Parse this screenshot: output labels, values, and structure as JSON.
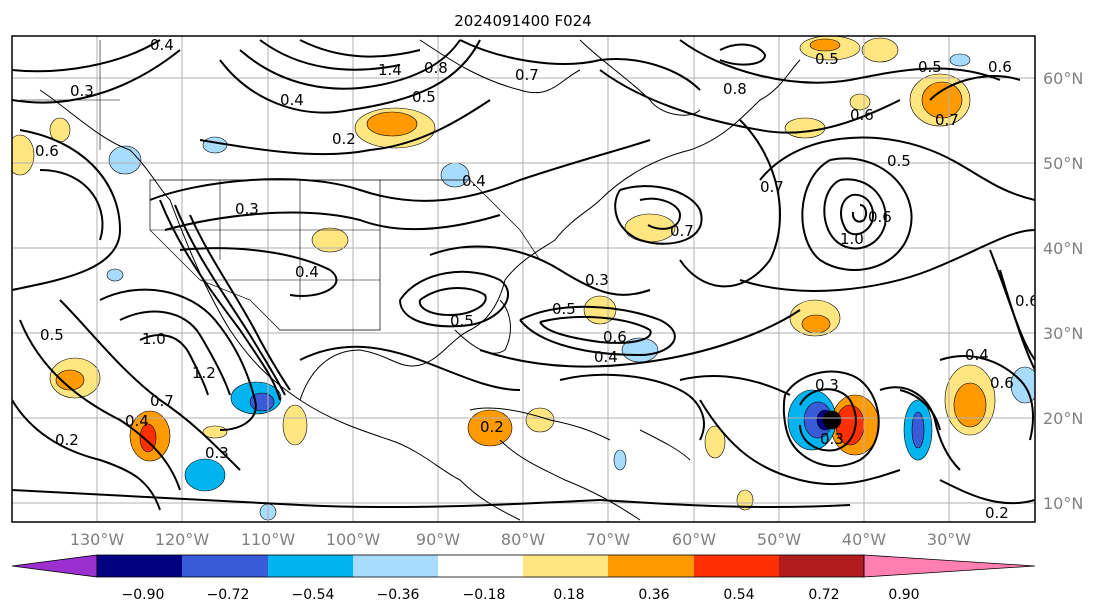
{
  "title": "2024091400 F024",
  "lon_ticks": [
    "130°W",
    "120°W",
    "110°W",
    "100°W",
    "90°W",
    "80°W",
    "70°W",
    "60°W",
    "50°W",
    "40°W",
    "30°W"
  ],
  "lat_ticks": [
    "60°N",
    "50°N",
    "40°N",
    "30°N",
    "20°N",
    "10°N"
  ],
  "colorbar": {
    "ticks": [
      "−0.90",
      "−0.72",
      "−0.54",
      "−0.36",
      "−0.18",
      "0.18",
      "0.36",
      "0.54",
      "0.72",
      "0.90"
    ],
    "colors": [
      "#9b30d0",
      "#000080",
      "#3a5bd8",
      "#00b4f0",
      "#a8dcff",
      "#ffffff",
      "#ffe680",
      "#ff9a00",
      "#ff3000",
      "#b01c1c",
      "#ff80b0"
    ]
  },
  "contour_labels": [
    {
      "text": "0.4"
    },
    {
      "text": "0.3"
    },
    {
      "text": "0.6"
    },
    {
      "text": "0.4"
    },
    {
      "text": "0.2"
    },
    {
      "text": "0.5"
    },
    {
      "text": "1.4"
    },
    {
      "text": "0.8"
    },
    {
      "text": "0.8"
    },
    {
      "text": "0.6"
    },
    {
      "text": "0.5"
    },
    {
      "text": "0.5"
    },
    {
      "text": "0.7"
    },
    {
      "text": "0.6"
    },
    {
      "text": "0.7"
    },
    {
      "text": "0.5"
    },
    {
      "text": "1.0"
    },
    {
      "text": "0.6"
    },
    {
      "text": "0.3"
    },
    {
      "text": "0.4"
    },
    {
      "text": "0.4"
    },
    {
      "text": "0.3"
    },
    {
      "text": "0.5"
    },
    {
      "text": "0.6"
    },
    {
      "text": "0.4"
    },
    {
      "text": "0.7"
    },
    {
      "text": "0.5"
    },
    {
      "text": "1.0"
    },
    {
      "text": "1.2"
    },
    {
      "text": "0.7"
    },
    {
      "text": "0.4"
    },
    {
      "text": "0.2"
    },
    {
      "text": "0.3"
    },
    {
      "text": "0.2"
    },
    {
      "text": "0.3"
    },
    {
      "text": "0.3"
    },
    {
      "text": "0.4"
    },
    {
      "text": "0.6"
    },
    {
      "text": "0.6"
    },
    {
      "text": "0.2"
    },
    {
      "text": "0.7"
    },
    {
      "text": "0.5"
    }
  ]
}
